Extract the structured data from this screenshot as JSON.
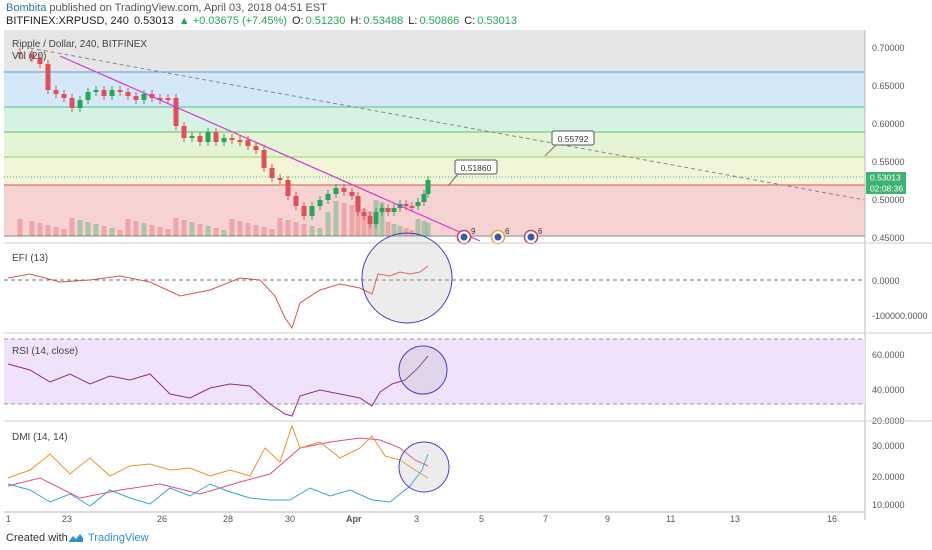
{
  "header": {
    "author": "Bombita",
    "published": "published on TradingView.com, April 03, 2018 04:51 EST",
    "symbol": "BITFINEX:XRPUSD, 240",
    "last": "0.53013",
    "change": "▲ +0.03675 (+7.45%)",
    "o_label": "O:",
    "o": "0.51230",
    "h_label": "H:",
    "h": "0.53488",
    "l_label": "L:",
    "l": "0.50866",
    "c_label": "C:",
    "c": "0.53013"
  },
  "main_pane": {
    "title": "Ripple / Dollar, 240, BITFINEX",
    "sub": "Vol (20)",
    "y_ticks": [
      "0.70000",
      "0.65000",
      "0.60000",
      "0.55000",
      "0.50000",
      "0.45000"
    ],
    "price_tag": "0.53013",
    "countdown_tag": "02:08:36",
    "callout_1": "0.51860",
    "callout_2": "0.55792",
    "event_counts": [
      "9",
      "6",
      "6"
    ],
    "colors": {
      "band_gray": "#e6e6e6",
      "band_blue": "#d5e8f7",
      "band_green": "#d6f2e3",
      "band_lightgreen": "#e4f5d5",
      "band_yellow": "#f3f5d8",
      "band_red": "#f6d3d2",
      "up": "#26a65b",
      "down": "#e0505a",
      "trend": "#d438d4"
    }
  },
  "efi_pane": {
    "title": "EFI (13)",
    "y_ticks": [
      "0.0000",
      "-100000.0000"
    ]
  },
  "rsi_pane": {
    "title": "RSI (14, close)",
    "y_ticks": [
      "60.0000",
      "40.0000",
      "20.0000"
    ]
  },
  "dmi_pane": {
    "title": "DMI (14, 14)",
    "y_ticks": [
      "30.0000",
      "20.0000",
      "10.0000"
    ]
  },
  "x_axis": {
    "labels": [
      "1",
      "23",
      "26",
      "28",
      "30",
      "Apr",
      "3",
      "5",
      "7",
      "9",
      "11",
      "13",
      "16"
    ]
  },
  "footer": {
    "created_with": "Created with",
    "brand": "TradingView"
  }
}
